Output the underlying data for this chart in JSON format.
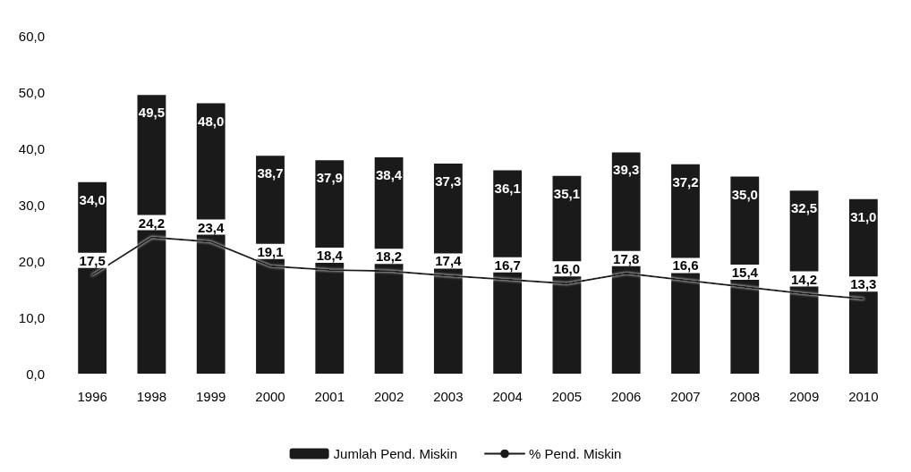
{
  "chart_data": {
    "type": "bar",
    "categories": [
      "1996",
      "1998",
      "1999",
      "2000",
      "2001",
      "2002",
      "2003",
      "2004",
      "2005",
      "2006",
      "2007",
      "2008",
      "2009",
      "2010"
    ],
    "series": [
      {
        "name": "Jumlah Pend. Miskin",
        "color": "#1a1a1a",
        "values": [
          34.0,
          49.5,
          48.0,
          38.7,
          37.9,
          38.4,
          37.3,
          36.1,
          35.1,
          39.3,
          37.2,
          35.0,
          32.5,
          31.0
        ],
        "value_labels": [
          "34,0",
          "49,5",
          "48,0",
          "38,7",
          "37,9",
          "38,4",
          "37,3",
          "36,1",
          "35,1",
          "39,3",
          "37,2",
          "35,0",
          "32,5",
          "31,0"
        ]
      },
      {
        "name": "% Pend. Miskin",
        "type": "line",
        "color": "#1a1a1a",
        "values": [
          17.5,
          24.2,
          23.4,
          19.1,
          18.4,
          18.2,
          17.4,
          16.7,
          16.0,
          17.8,
          16.6,
          15.4,
          14.2,
          13.3
        ],
        "value_labels": [
          "17,5",
          "24,2",
          "23,4",
          "19,1",
          "18,4",
          "18,2",
          "17,4",
          "16,7",
          "16,0",
          "17,8",
          "16,6",
          "15,4",
          "14,2",
          "13,3"
        ]
      }
    ],
    "ylim": [
      0,
      60
    ],
    "yticks": [
      {
        "value": 0,
        "label": "0,0"
      },
      {
        "value": 10,
        "label": "10,0"
      },
      {
        "value": 20,
        "label": "20,0"
      },
      {
        "value": 30,
        "label": "30,0"
      },
      {
        "value": 40,
        "label": "40,0"
      },
      {
        "value": 50,
        "label": "50,0"
      },
      {
        "value": 60,
        "label": "60,0"
      }
    ],
    "grid": false,
    "legend": "bottom",
    "marker": "none",
    "line_style": "solid"
  }
}
